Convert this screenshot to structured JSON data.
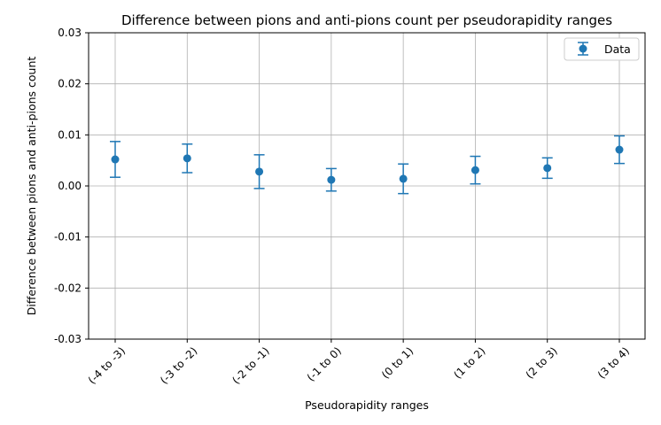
{
  "chart_data": {
    "type": "scatter",
    "title": "Difference between pions and anti-pions count per pseudorapidity ranges",
    "xlabel": "Pseudorapidity ranges",
    "ylabel": "Difference between pions and anti-pions count",
    "categories": [
      "(-4 to -3)",
      "(-3 to -2)",
      "(-2 to -1)",
      "(-1 to 0)",
      "(0 to 1)",
      "(1 to 2)",
      "(2 to 3)",
      "(3 to 4)"
    ],
    "series": [
      {
        "name": "Data",
        "values": [
          0.0052,
          0.0054,
          0.0028,
          0.0012,
          0.0014,
          0.0031,
          0.0035,
          0.0071
        ],
        "errors": [
          0.0035,
          0.0028,
          0.0033,
          0.0022,
          0.0029,
          0.0027,
          0.002,
          0.0027
        ]
      }
    ],
    "ylim": [
      -0.03,
      0.03
    ],
    "yticks": [
      "-0.03",
      "-0.02",
      "-0.01",
      "0.00",
      "0.01",
      "0.02",
      "0.03"
    ],
    "ytick_values": [
      -0.03,
      -0.02,
      -0.01,
      0.0,
      0.01,
      0.02,
      0.03
    ],
    "grid": true,
    "legend_position": "top-right",
    "color": "#1f77b4"
  }
}
